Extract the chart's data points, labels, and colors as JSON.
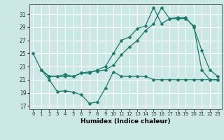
{
  "xlabel": "Humidex (Indice chaleur)",
  "background_color": "#cce8e4",
  "grid_color": "#ffffff",
  "line_color": "#1a7a6e",
  "xlim": [
    -0.5,
    23.5
  ],
  "ylim": [
    16.5,
    32.5
  ],
  "yticks": [
    17,
    19,
    21,
    23,
    25,
    27,
    29,
    31
  ],
  "xticks": [
    0,
    1,
    2,
    3,
    4,
    5,
    6,
    7,
    8,
    9,
    10,
    11,
    12,
    13,
    14,
    15,
    16,
    17,
    18,
    19,
    20,
    21,
    22,
    23
  ],
  "series1_x": [
    0,
    1,
    2,
    3,
    4,
    5,
    6,
    7,
    8,
    9,
    10,
    11,
    12,
    13,
    14,
    15,
    16,
    17,
    18,
    19,
    20,
    21,
    22,
    23
  ],
  "series1_y": [
    25.0,
    22.5,
    21.0,
    19.2,
    19.3,
    19.1,
    18.7,
    17.4,
    17.6,
    19.7,
    22.2,
    21.5,
    21.5,
    21.5,
    21.5,
    21.0,
    21.0,
    21.0,
    21.0,
    21.0,
    21.0,
    21.0,
    21.0,
    21.0
  ],
  "series2_x": [
    1,
    2,
    3,
    4,
    5,
    6,
    7,
    8,
    9,
    10,
    11,
    12,
    13,
    14,
    15,
    16,
    17,
    18,
    19,
    20,
    21,
    22,
    23
  ],
  "series2_y": [
    22.5,
    21.5,
    21.5,
    21.5,
    21.5,
    22.0,
    22.0,
    22.5,
    23.0,
    25.0,
    27.0,
    27.5,
    28.8,
    29.2,
    32.0,
    29.5,
    30.3,
    30.3,
    30.3,
    29.2,
    22.5,
    21.0,
    21.0
  ],
  "series3_x": [
    1,
    2,
    3,
    4,
    5,
    6,
    7,
    8,
    9,
    10,
    11,
    12,
    13,
    14,
    15,
    16,
    17,
    18,
    19,
    20,
    21,
    22,
    23
  ],
  "series3_y": [
    22.5,
    21.5,
    21.5,
    21.8,
    21.5,
    22.0,
    22.2,
    22.3,
    22.5,
    23.2,
    24.8,
    26.0,
    27.0,
    28.5,
    29.5,
    32.0,
    30.3,
    30.5,
    30.5,
    29.0,
    25.5,
    22.5,
    21.5
  ]
}
